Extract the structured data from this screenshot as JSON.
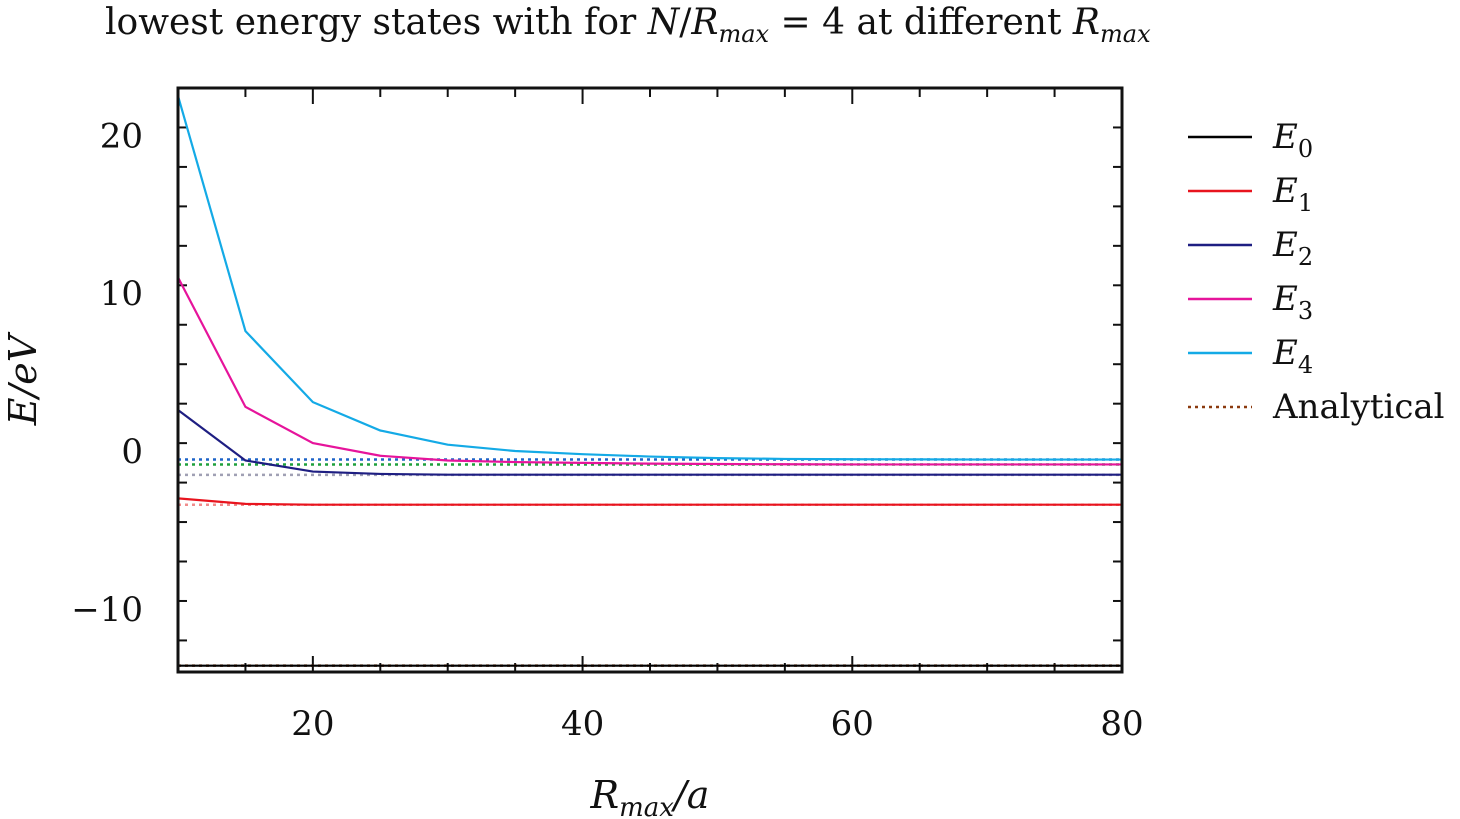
{
  "chart_data": {
    "type": "line",
    "title": {
      "prefix": "lowest energy states with for ",
      "math_n": "N",
      "slash": "/",
      "math_r": "R",
      "sub_max": "max",
      "equals": " = 4 at different ",
      "math_r2": "R",
      "sub_max2": "max"
    },
    "xlabel": {
      "main": "R",
      "sub": "max",
      "rest": "/a"
    },
    "ylabel": "E/eV",
    "xlim": [
      10,
      80
    ],
    "ylim": [
      -14,
      23
    ],
    "xticks": [
      20,
      40,
      60,
      80
    ],
    "xtick_labels": [
      "20",
      "40",
      "60",
      "80"
    ],
    "yticks": [
      -10,
      0,
      10,
      20
    ],
    "ytick_labels": [
      "−10",
      "0",
      "10",
      "20"
    ],
    "x": [
      10,
      15,
      20,
      25,
      30,
      35,
      40,
      45,
      50,
      55,
      60,
      65,
      70,
      75,
      80
    ],
    "series": [
      {
        "name": "E",
        "sub": "0",
        "color": "#000000",
        "values": [
          -13.6,
          -13.6,
          -13.6,
          -13.6,
          -13.6,
          -13.6,
          -13.6,
          -13.6,
          -13.6,
          -13.6,
          -13.6,
          -13.6,
          -13.6,
          -13.6,
          -13.6
        ]
      },
      {
        "name": "E",
        "sub": "1",
        "color": "#e8141e",
        "values": [
          -3.0,
          -3.35,
          -3.4,
          -3.4,
          -3.4,
          -3.4,
          -3.4,
          -3.4,
          -3.4,
          -3.4,
          -3.4,
          -3.4,
          -3.4,
          -3.4,
          -3.4
        ]
      },
      {
        "name": "E",
        "sub": "2",
        "color": "#1e1e82",
        "values": [
          2.6,
          -0.6,
          -1.3,
          -1.45,
          -1.5,
          -1.5,
          -1.5,
          -1.5,
          -1.5,
          -1.5,
          -1.5,
          -1.5,
          -1.5,
          -1.5,
          -1.5
        ]
      },
      {
        "name": "E",
        "sub": "3",
        "color": "#e6149b",
        "values": [
          11.0,
          2.8,
          0.5,
          -0.3,
          -0.6,
          -0.7,
          -0.75,
          -0.8,
          -0.82,
          -0.84,
          -0.85,
          -0.85,
          -0.85,
          -0.85,
          -0.85
        ]
      },
      {
        "name": "E",
        "sub": "4",
        "color": "#14aae6",
        "values": [
          22.5,
          7.6,
          3.1,
          1.3,
          0.4,
          0.0,
          -0.2,
          -0.35,
          -0.45,
          -0.5,
          -0.52,
          -0.53,
          -0.54,
          -0.54,
          -0.54
        ]
      }
    ],
    "analytical": {
      "name": "Analytical",
      "levels": [
        {
          "value": -13.6,
          "color": "#8b3a0f"
        },
        {
          "value": -3.4,
          "color": "#f08c8c"
        },
        {
          "value": -1.51,
          "color": "#a0a0b4"
        },
        {
          "value": -0.85,
          "color": "#1ea03c"
        },
        {
          "value": -0.54,
          "color": "#1e64c8"
        }
      ],
      "legend_color": "#8b3a0f"
    },
    "legend_position": "outside-right",
    "grid": false
  }
}
